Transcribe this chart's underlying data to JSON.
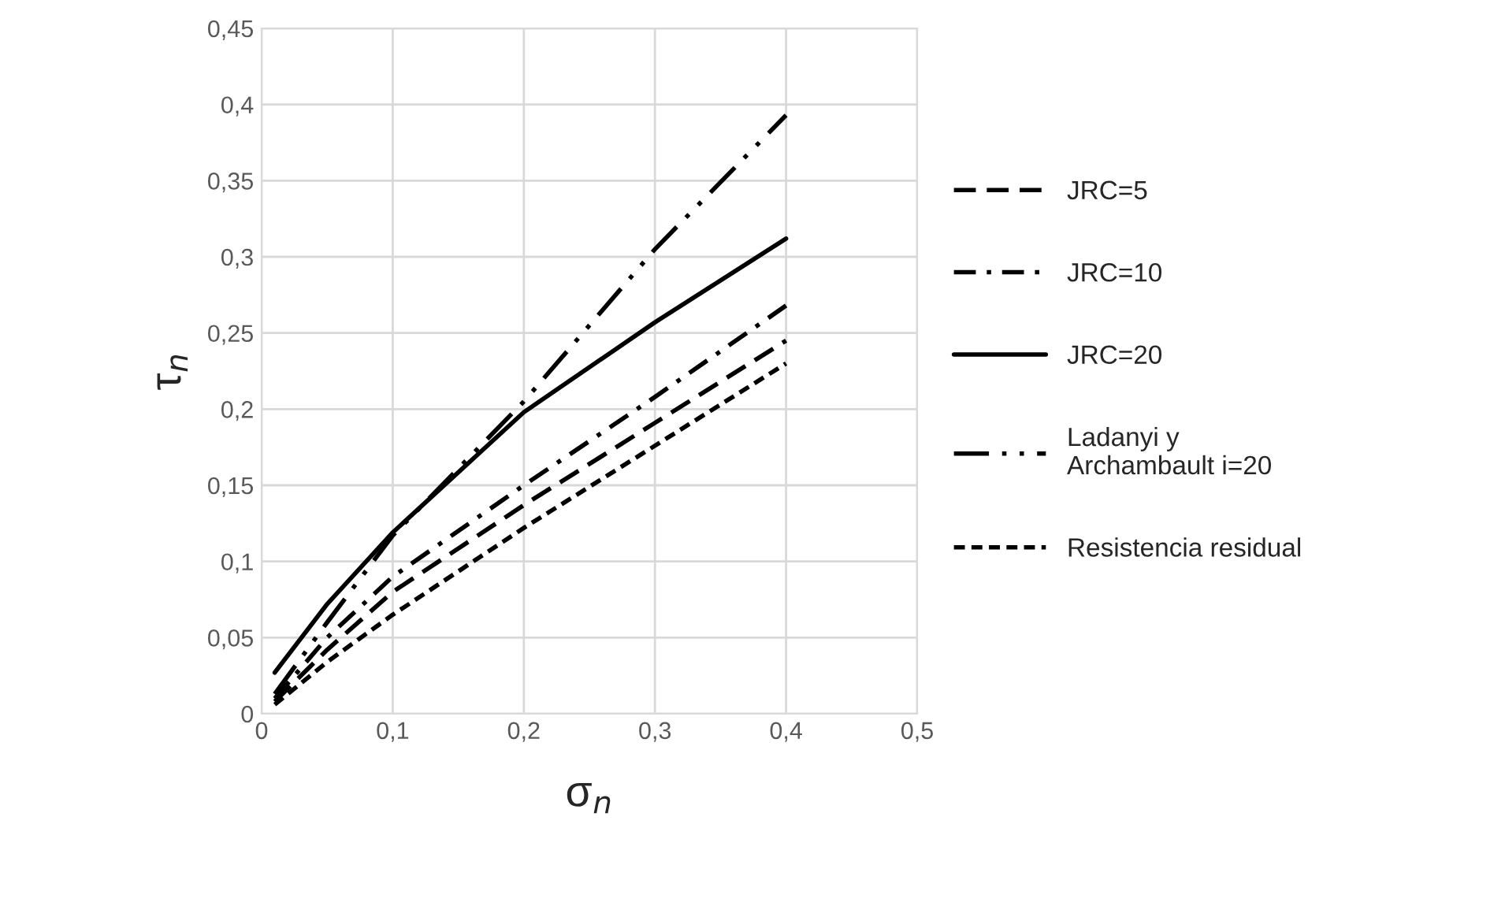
{
  "chart_data": {
    "type": "line",
    "xlabel": "σ$_{n}$",
    "ylabel": "τ$_{n}$",
    "x": [
      0.01,
      0.05,
      0.1,
      0.2,
      0.3,
      0.4
    ],
    "series": [
      {
        "name": "JRC=5",
        "color": "#000000",
        "line_style": "dashed",
        "values": [
          0.008,
          0.042,
          0.08,
          0.137,
          0.191,
          0.245
        ]
      },
      {
        "name": "JRC=10",
        "color": "#000000",
        "line_style": "dashdot",
        "values": [
          0.01,
          0.05,
          0.09,
          0.15,
          0.208,
          0.268
        ]
      },
      {
        "name": "JRC=20",
        "color": "#000000",
        "line_style": "solid",
        "values": [
          0.027,
          0.072,
          0.119,
          0.198,
          0.257,
          0.312
        ]
      },
      {
        "name": "Ladanyi y\nArchambault i=20",
        "color": "#000000",
        "line_style": "dashdotdot",
        "values": [
          0.013,
          0.06,
          0.117,
          0.205,
          0.305,
          0.393
        ]
      },
      {
        "name": "Resistencia residual",
        "color": "#000000",
        "line_style": "shortdash",
        "values": [
          0.006,
          0.034,
          0.065,
          0.122,
          0.176,
          0.23
        ]
      }
    ],
    "xlim": [
      0,
      0.5
    ],
    "xticks": [
      0,
      {
        "value": 0.1,
        "label": "0,1"
      },
      {
        "value": 0.2,
        "label": "0,2"
      },
      {
        "value": 0.3,
        "label": "0,3"
      },
      {
        "value": 0.4,
        "label": "0,4"
      },
      {
        "value": 0.5,
        "label": "0,5"
      }
    ],
    "ylim": [
      0,
      0.45
    ],
    "yticks": [
      0,
      {
        "value": 0.05,
        "label": "0,05"
      },
      {
        "value": 0.1,
        "label": "0,1"
      },
      {
        "value": 0.15,
        "label": "0,15"
      },
      {
        "value": 0.2,
        "label": "0,2"
      },
      {
        "value": 0.25,
        "label": "0,25"
      },
      {
        "value": 0.3,
        "label": "0,3"
      },
      {
        "value": 0.35,
        "label": "0,35"
      },
      {
        "value": 0.4,
        "label": "0,4"
      },
      {
        "value": 0.45,
        "label": "0,45"
      }
    ],
    "grid": true,
    "legend": "right",
    "marker": "none"
  }
}
